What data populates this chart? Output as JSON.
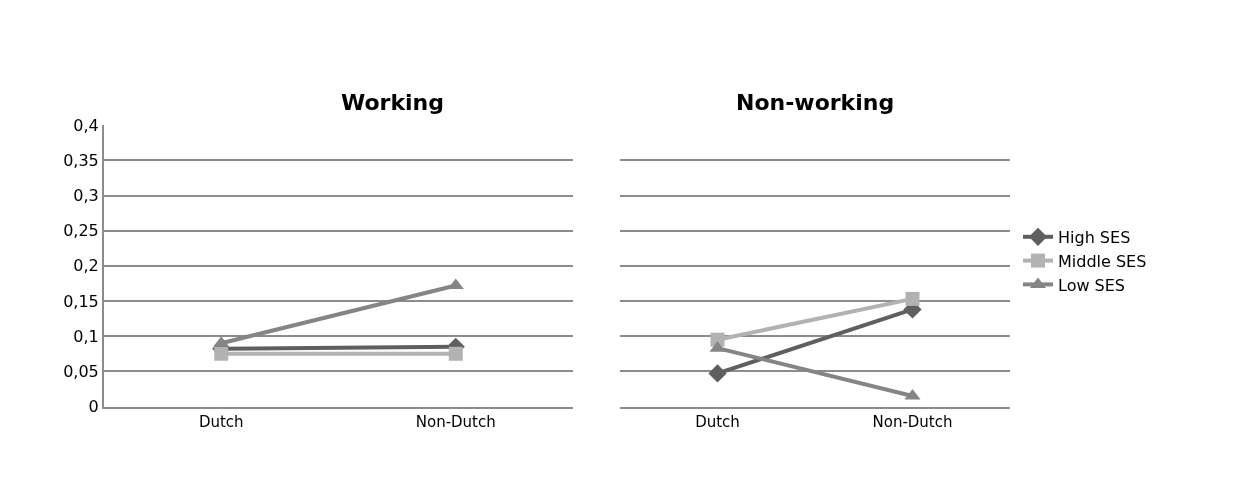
{
  "chart_data": [
    {
      "type": "line",
      "title": "Working",
      "categories": [
        "Dutch",
        "Non-Dutch"
      ],
      "ylim": [
        0,
        0.4
      ],
      "yticks": [
        {
          "value": 0,
          "label": "0"
        },
        {
          "value": 0.05,
          "label": "0,05"
        },
        {
          "value": 0.1,
          "label": "0,1"
        },
        {
          "value": 0.15,
          "label": "0,15"
        },
        {
          "value": 0.2,
          "label": "0,2"
        },
        {
          "value": 0.25,
          "label": "0,25"
        },
        {
          "value": 0.3,
          "label": "0,3"
        },
        {
          "value": 0.35,
          "label": "0,35"
        },
        {
          "value": 0.4,
          "label": "0,4"
        }
      ],
      "grid": "y",
      "series": [
        {
          "color": "#5f5f5f",
          "marker": "diamond",
          "values": [
            0.082,
            0.085
          ]
        },
        {
          "color": "#b2b2b2",
          "marker": "square",
          "values": [
            0.075,
            0.075
          ]
        },
        {
          "color": "#858585",
          "marker": "triangle",
          "values": [
            0.09,
            0.172
          ]
        }
      ]
    },
    {
      "type": "line",
      "title": "Non-working",
      "categories": [
        "Dutch",
        "Non-Dutch"
      ],
      "ylim": [
        0,
        0.4
      ],
      "yticks": [
        0,
        0.05,
        0.1,
        0.15,
        0.2,
        0.25,
        0.3,
        0.35,
        0.4
      ],
      "grid": "y",
      "legend": "right",
      "tick_labels": "x",
      "series": [
        {
          "name": "High SES",
          "color": "#5f5f5f",
          "marker": "diamond",
          "values": [
            0.047,
            0.138
          ]
        },
        {
          "name": "Middle SES",
          "color": "#b2b2b2",
          "marker": "square",
          "values": [
            0.095,
            0.153
          ]
        },
        {
          "name": "Low SES",
          "color": "#858585",
          "marker": "triangle",
          "values": [
            0.083,
            0.015
          ]
        }
      ]
    }
  ]
}
